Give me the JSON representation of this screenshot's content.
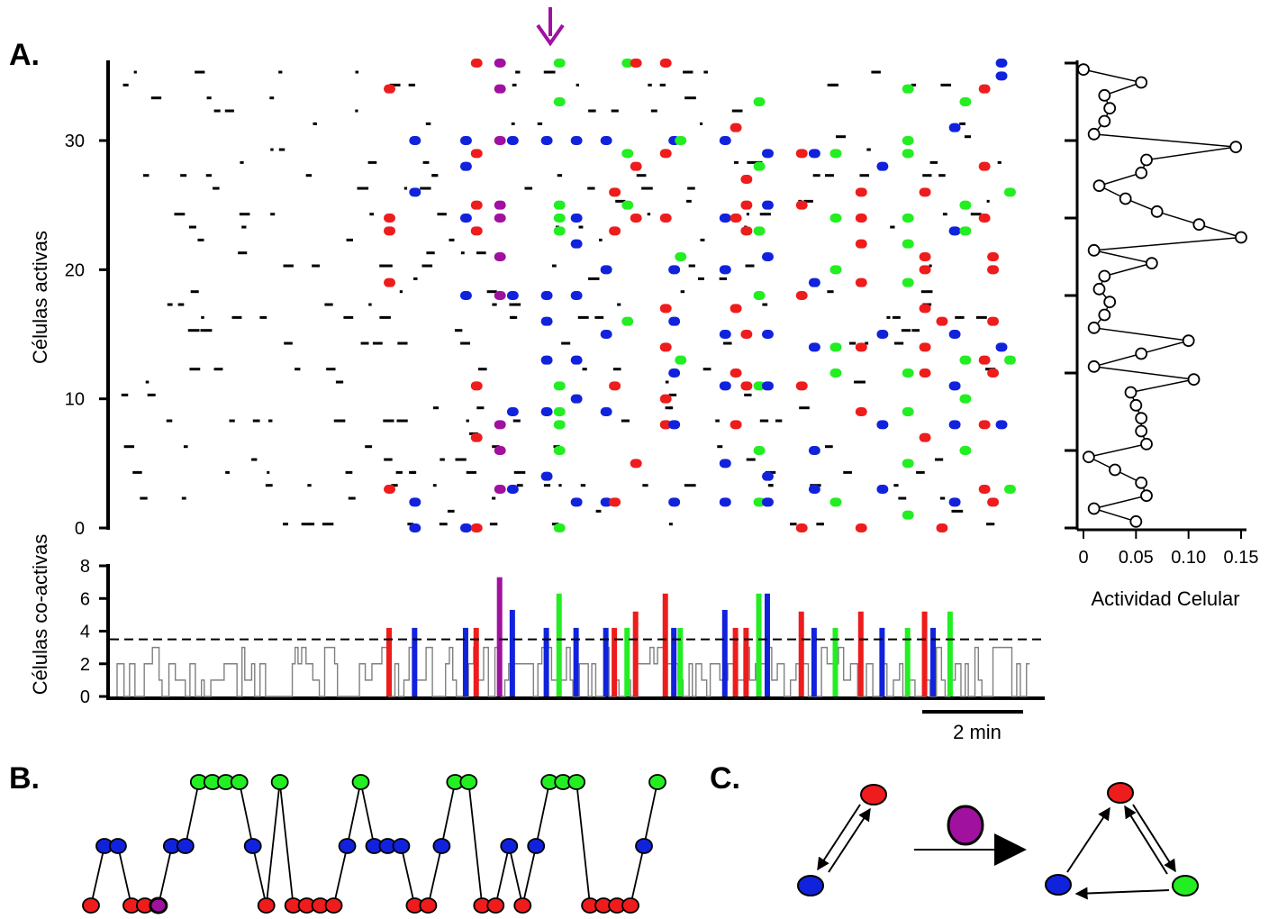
{
  "figure": {
    "panel_a": "A.",
    "panel_b": "B.",
    "panel_c": "C."
  },
  "colors": {
    "red": "#ee1c1c",
    "blue": "#1122dd",
    "green": "#22ee22",
    "purple": "#a011a0",
    "black": "#000000",
    "gray": "#808080"
  },
  "chart_data": [
    {
      "id": "raster",
      "type": "scatter",
      "ylabel": "Células activas",
      "yticks": [
        0,
        10,
        20,
        30
      ],
      "ylim": [
        0,
        36
      ],
      "xlim": [
        0,
        17
      ],
      "x_unit": "min",
      "note_marker": "down-arrow",
      "events": [
        {
          "color": "red",
          "x": 6.4,
          "cells": [
            3,
            19,
            23,
            24,
            34
          ]
        },
        {
          "color": "blue",
          "x": 7.0,
          "cells": [
            0,
            2,
            26,
            30
          ]
        },
        {
          "color": "blue",
          "x": 8.2,
          "cells": [
            0,
            18,
            24,
            28,
            30
          ]
        },
        {
          "color": "red",
          "x": 8.45,
          "cells": [
            0,
            7,
            11,
            23,
            25,
            29,
            36
          ]
        },
        {
          "color": "purple",
          "x": 9.0,
          "cells": [
            3,
            6,
            8,
            18,
            21,
            24,
            25,
            30,
            34,
            36
          ]
        },
        {
          "color": "blue",
          "x": 9.3,
          "cells": [
            3,
            9,
            18,
            30
          ]
        },
        {
          "color": "blue",
          "x": 10.1,
          "cells": [
            4,
            9,
            13,
            16,
            18,
            30
          ]
        },
        {
          "color": "green",
          "x": 10.4,
          "cells": [
            0,
            6,
            8,
            9,
            11,
            23,
            24,
            25,
            33,
            36
          ]
        },
        {
          "color": "blue",
          "x": 10.8,
          "cells": [
            2,
            10,
            13,
            18,
            22,
            24,
            30
          ]
        },
        {
          "color": "blue",
          "x": 11.5,
          "cells": [
            2,
            9,
            15,
            20,
            30
          ]
        },
        {
          "color": "red",
          "x": 11.7,
          "cells": [
            2,
            11,
            23,
            26
          ]
        },
        {
          "color": "green",
          "x": 12.0,
          "cells": [
            16,
            25,
            29,
            36
          ]
        },
        {
          "color": "red",
          "x": 12.2,
          "cells": [
            5,
            24,
            28,
            36
          ]
        },
        {
          "color": "red",
          "x": 12.9,
          "cells": [
            8,
            10,
            14,
            17,
            24,
            29,
            36
          ]
        },
        {
          "color": "blue",
          "x": 13.1,
          "cells": [
            2,
            8,
            12,
            16,
            20,
            30
          ]
        },
        {
          "color": "green",
          "x": 13.25,
          "cells": [
            13,
            21,
            30
          ]
        },
        {
          "color": "blue",
          "x": 14.3,
          "cells": [
            2,
            5,
            11,
            15,
            20,
            24,
            30
          ]
        },
        {
          "color": "red",
          "x": 14.55,
          "cells": [
            8,
            12,
            17,
            24,
            31
          ]
        },
        {
          "color": "red",
          "x": 14.8,
          "cells": [
            11,
            15,
            23,
            25,
            27
          ]
        },
        {
          "color": "green",
          "x": 15.1,
          "cells": [
            2,
            6,
            11,
            18,
            23,
            28,
            33
          ]
        },
        {
          "color": "blue",
          "x": 15.3,
          "cells": [
            2,
            4,
            11,
            15,
            21,
            25,
            29
          ]
        },
        {
          "color": "red",
          "x": 16.1,
          "cells": [
            0,
            11,
            18,
            25,
            29
          ]
        },
        {
          "color": "blue",
          "x": 16.4,
          "cells": [
            3,
            6,
            14,
            19,
            29
          ]
        },
        {
          "color": "green",
          "x": 16.9,
          "cells": [
            2,
            12,
            14,
            20,
            24,
            29
          ]
        },
        {
          "color": "red",
          "x": 17.5,
          "cells": [
            0,
            9,
            14,
            19,
            22,
            24,
            26
          ]
        },
        {
          "color": "blue",
          "x": 18.0,
          "cells": [
            3,
            8,
            15,
            28
          ]
        },
        {
          "color": "green",
          "x": 18.6,
          "cells": [
            1,
            5,
            9,
            12,
            19,
            22,
            24,
            29,
            30,
            34
          ]
        },
        {
          "color": "red",
          "x": 19.0,
          "cells": [
            7,
            12,
            14,
            17,
            20,
            21,
            26
          ]
        },
        {
          "color": "blue",
          "x": 19.7,
          "cells": [
            2,
            8,
            11,
            15,
            23,
            31
          ]
        },
        {
          "color": "red",
          "x": 19.4,
          "cells": [
            0,
            16
          ]
        },
        {
          "color": "green",
          "x": 19.95,
          "cells": [
            6,
            10,
            13,
            23,
            25,
            33
          ]
        },
        {
          "color": "red",
          "x": 20.4,
          "cells": [
            3,
            8,
            13,
            24,
            28,
            34
          ]
        },
        {
          "color": "red",
          "x": 20.6,
          "cells": [
            2,
            12,
            16,
            20,
            21
          ]
        },
        {
          "color": "blue",
          "x": 20.8,
          "cells": [
            8,
            14,
            35,
            36
          ]
        },
        {
          "color": "green",
          "x": 21.0,
          "cells": [
            3,
            13,
            26
          ]
        }
      ]
    },
    {
      "id": "coactive",
      "type": "line",
      "ylabel": "Células co-activas",
      "yticks": [
        0,
        2,
        4,
        6,
        8
      ],
      "ylim": [
        0,
        8
      ],
      "threshold": 3.5,
      "threshold_style": "dashed",
      "scale_bar_label": "2 min",
      "background_color": "gray",
      "peaks": [
        {
          "color": "red",
          "x": 6.4,
          "value": 4.2
        },
        {
          "color": "blue",
          "x": 7.0,
          "value": 4.2
        },
        {
          "color": "blue",
          "x": 8.2,
          "value": 4.2
        },
        {
          "color": "red",
          "x": 8.45,
          "value": 4.2
        },
        {
          "color": "purple",
          "x": 9.0,
          "value": 7.3
        },
        {
          "color": "blue",
          "x": 9.3,
          "value": 5.3
        },
        {
          "color": "blue",
          "x": 10.1,
          "value": 4.2
        },
        {
          "color": "green",
          "x": 10.4,
          "value": 6.3
        },
        {
          "color": "blue",
          "x": 10.8,
          "value": 4.2
        },
        {
          "color": "blue",
          "x": 11.5,
          "value": 4.2
        },
        {
          "color": "red",
          "x": 11.7,
          "value": 4.2
        },
        {
          "color": "green",
          "x": 12.0,
          "value": 4.2
        },
        {
          "color": "red",
          "x": 12.2,
          "value": 5.2
        },
        {
          "color": "red",
          "x": 12.9,
          "value": 6.3
        },
        {
          "color": "blue",
          "x": 13.1,
          "value": 4.2
        },
        {
          "color": "green",
          "x": 13.25,
          "value": 4.2
        },
        {
          "color": "blue",
          "x": 14.3,
          "value": 5.3
        },
        {
          "color": "red",
          "x": 14.55,
          "value": 4.2
        },
        {
          "color": "red",
          "x": 14.8,
          "value": 4.2
        },
        {
          "color": "green",
          "x": 15.1,
          "value": 6.3
        },
        {
          "color": "blue",
          "x": 15.3,
          "value": 6.3
        },
        {
          "color": "red",
          "x": 16.1,
          "value": 5.2
        },
        {
          "color": "blue",
          "x": 16.4,
          "value": 4.2
        },
        {
          "color": "green",
          "x": 16.9,
          "value": 4.2
        },
        {
          "color": "red",
          "x": 17.5,
          "value": 5.2
        },
        {
          "color": "blue",
          "x": 18.0,
          "value": 4.2
        },
        {
          "color": "green",
          "x": 18.6,
          "value": 4.2
        },
        {
          "color": "red",
          "x": 19.0,
          "value": 5.2
        },
        {
          "color": "blue",
          "x": 19.2,
          "value": 4.2
        },
        {
          "color": "green",
          "x": 19.6,
          "value": 5.2
        }
      ]
    },
    {
      "id": "activity",
      "type": "line",
      "xlabel": "Actividad Celular",
      "xticks": [
        0,
        0.05,
        0.1,
        0.15
      ],
      "xtick_labels": [
        "0",
        "0.05",
        "0.10",
        "0.15"
      ],
      "xlim": [
        0,
        0.15
      ],
      "ylim": [
        0,
        36
      ],
      "marker": "open-circle",
      "cells": [
        0,
        1,
        2,
        3,
        4,
        5,
        6,
        7,
        8,
        9,
        10,
        11,
        12,
        13,
        14,
        15,
        16,
        17,
        18,
        19,
        20,
        21,
        22,
        23,
        24,
        25,
        26,
        27,
        28,
        29,
        30,
        31,
        32,
        33,
        34,
        35
      ],
      "values": [
        0.05,
        0.01,
        0.06,
        0.055,
        0.03,
        0.005,
        0.06,
        0.055,
        0.055,
        0.05,
        0.045,
        0.105,
        0.01,
        0.055,
        0.1,
        0.01,
        0.02,
        0.025,
        0.015,
        0.02,
        0.065,
        0.01,
        0.15,
        0.11,
        0.07,
        0.04,
        0.015,
        0.055,
        0.06,
        0.145,
        0.01,
        0.02,
        0.025,
        0.02,
        0.055,
        0.0
      ]
    },
    {
      "id": "sequence",
      "type": "line",
      "levels": [
        "red",
        "blue",
        "green"
      ],
      "sequence": [
        "red",
        "blue",
        "blue",
        "red",
        "red",
        "purple",
        "blue",
        "blue",
        "green",
        "green",
        "green",
        "green",
        "blue",
        "red",
        "green",
        "red",
        "red",
        "red",
        "red",
        "blue",
        "green",
        "blue",
        "blue",
        "blue",
        "red",
        "red",
        "blue",
        "green",
        "green",
        "red",
        "red",
        "blue",
        "red",
        "blue",
        "green",
        "green",
        "green",
        "red",
        "red",
        "red",
        "red",
        "blue",
        "green"
      ]
    }
  ],
  "diagram_c": {
    "left_arrows": "red-blue bidirectional",
    "center_marker": "purple",
    "right_cycle": [
      "blue",
      "red",
      "green"
    ]
  }
}
